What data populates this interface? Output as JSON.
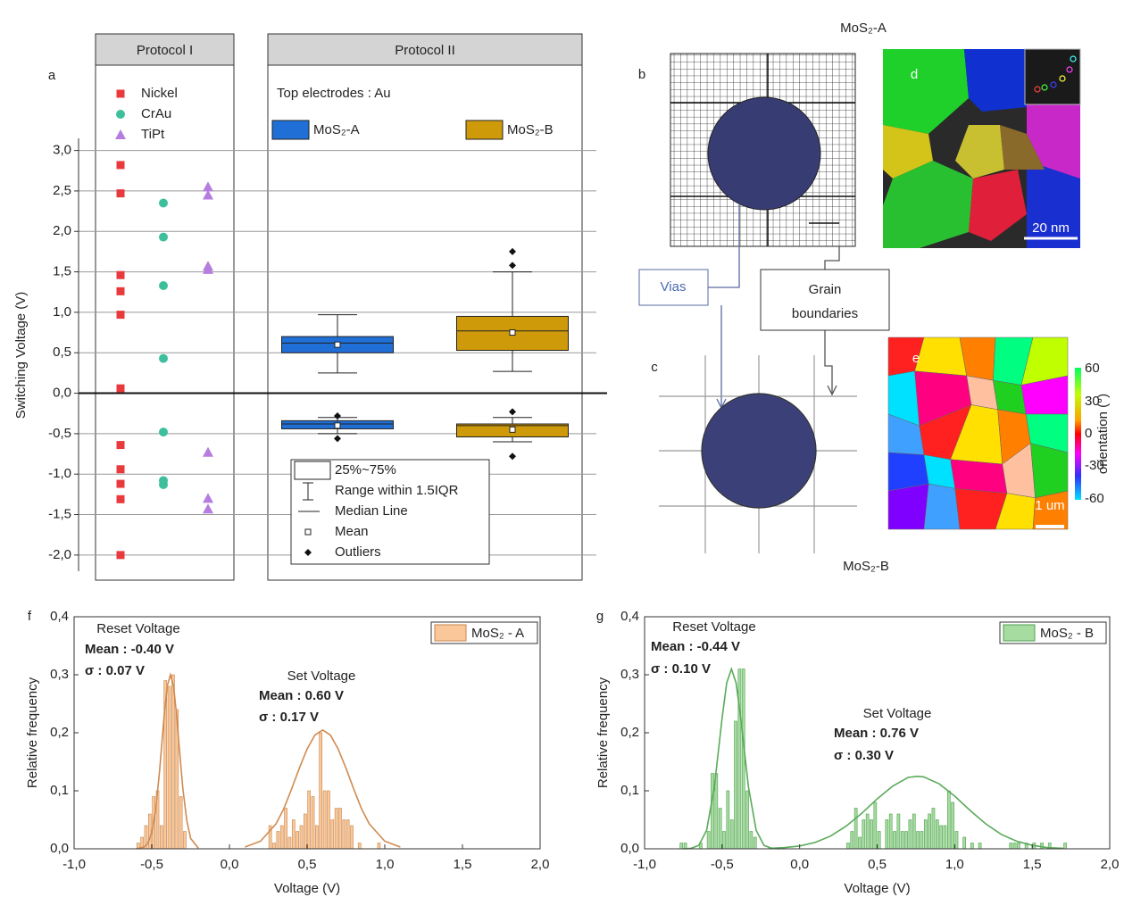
{
  "chart_data": [
    {
      "type": "box",
      "panel": "a",
      "y_label": "Switching Voltage (V)",
      "groups": [
        "Protocol I",
        "Protocol II"
      ],
      "note": "Top electrodes : Au",
      "ylim": [
        -2.2,
        3.15
      ],
      "yticks": [
        {
          "value": -2,
          "label": "-2,0"
        },
        {
          "value": -1.5,
          "label": "-1,5"
        },
        {
          "value": -1,
          "label": "-1,0"
        },
        {
          "value": -0.5,
          "label": "-0,5"
        },
        {
          "value": 0,
          "label": "0,0"
        },
        {
          "value": 0.5,
          "label": "0,5"
        },
        {
          "value": 1,
          "label": "1,0"
        },
        {
          "value": 1.5,
          "label": "1,5"
        },
        {
          "value": 2,
          "label": "2,0"
        },
        {
          "value": 2.5,
          "label": "2,5"
        },
        {
          "value": 3,
          "label": "3,0"
        }
      ],
      "grid": true,
      "points": [
        {
          "name": "Nickel",
          "color": "#e8393c",
          "marker": "square",
          "values": [
            2.82,
            2.47,
            1.46,
            1.26,
            0.97,
            0.06,
            -0.64,
            -0.94,
            -1.12,
            -1.31,
            -2.0
          ]
        },
        {
          "name": "CrAu",
          "color": "#3dbf9c",
          "marker": "circle",
          "values": [
            2.35,
            1.93,
            1.33,
            0.43,
            -0.48,
            -1.08,
            -1.13
          ]
        },
        {
          "name": "TiPt",
          "color": "#b57de0",
          "marker": "triangle",
          "values": [
            2.55,
            2.45,
            1.57,
            1.53,
            -0.73,
            -1.3,
            -1.43
          ]
        }
      ],
      "series": [
        {
          "name": "MoS₂-A",
          "color": "#1f6fd6",
          "boxes": [
            {
              "min": 0.25,
              "q1": 0.5,
              "median": 0.62,
              "q3": 0.7,
              "max": 0.97,
              "mean": 0.6,
              "outliers": []
            },
            {
              "min": -0.5,
              "q1": -0.44,
              "median": -0.38,
              "q3": -0.34,
              "max": -0.3,
              "mean": -0.4,
              "outliers": [
                -0.28,
                -0.56
              ]
            }
          ]
        },
        {
          "name": "MoS₂-B",
          "color": "#cf9a0a",
          "boxes": [
            {
              "min": 0.27,
              "q1": 0.53,
              "median": 0.77,
              "q3": 0.95,
              "max": 1.5,
              "mean": 0.75,
              "outliers": [
                1.58,
                1.75
              ]
            },
            {
              "min": -0.6,
              "q1": -0.54,
              "median": -0.4,
              "q3": -0.38,
              "max": -0.3,
              "mean": -0.45,
              "outliers": [
                -0.23,
                -0.78
              ]
            }
          ]
        }
      ],
      "box_legend": [
        "25%~75%",
        "Range within 1.5IQR",
        "Median Line",
        "Mean",
        "Outliers"
      ]
    },
    {
      "type": "histogram",
      "panel": "f",
      "x_label": "Voltage (V)",
      "y_label": "Relative frequency",
      "xlim": [
        -1,
        2
      ],
      "ylim": [
        0,
        0.4
      ],
      "xticks": [
        {
          "value": -1,
          "label": "-1,0"
        },
        {
          "value": -0.5,
          "label": "-0,5"
        },
        {
          "value": 0,
          "label": "0,0"
        },
        {
          "value": 0.5,
          "label": "0,5"
        },
        {
          "value": 1,
          "label": "1,0"
        },
        {
          "value": 1.5,
          "label": "1,5"
        },
        {
          "value": 2,
          "label": "2,0"
        }
      ],
      "yticks": [
        {
          "value": 0,
          "label": "0,0"
        },
        {
          "value": 0.1,
          "label": "0,1"
        },
        {
          "value": 0.2,
          "label": "0,2"
        },
        {
          "value": 0.3,
          "label": "0,3"
        },
        {
          "value": 0.4,
          "label": "0,4"
        }
      ],
      "series": [
        {
          "name": "MoS₂ - A",
          "color": "#f9c79a",
          "edge_color": "#c9854a",
          "bins": [
            -0.6,
            -0.575,
            -0.55,
            -0.525,
            -0.5,
            -0.475,
            -0.45,
            -0.425,
            -0.4,
            -0.375,
            -0.35,
            -0.325,
            -0.3,
            -0.275,
            -0.25,
            -0.225,
            -0.2,
            -0.175,
            -0.15,
            -0.125,
            -0.1,
            -0.075,
            -0.05,
            -0.025,
            0,
            0.025,
            0.05,
            0.075,
            0.1,
            0.125,
            0.15,
            0.175,
            0.2,
            0.225,
            0.25,
            0.275,
            0.3,
            0.325,
            0.35,
            0.375,
            0.4,
            0.425,
            0.45,
            0.475,
            0.5,
            0.525,
            0.55,
            0.575,
            0.6,
            0.625,
            0.65,
            0.675,
            0.7,
            0.725,
            0.75,
            0.775,
            0.8,
            0.825,
            0.85,
            0.875,
            0.9,
            0.925,
            0.95,
            0.975,
            1.0
          ],
          "values": [
            0.01,
            0.02,
            0.04,
            0.06,
            0.09,
            0.1,
            0.04,
            0.29,
            0.28,
            0.3,
            0.24,
            0.09,
            0.03,
            0,
            0,
            0,
            0,
            0,
            0,
            0,
            0,
            0,
            0,
            0,
            0,
            0,
            0,
            0,
            0,
            0,
            0,
            0,
            0,
            0,
            0.04,
            0.01,
            0.03,
            0.04,
            0.07,
            0.02,
            0.05,
            0.03,
            0.04,
            0.06,
            0.1,
            0.09,
            0.04,
            0.2,
            0.1,
            0.1,
            0.05,
            0.07,
            0.07,
            0.05,
            0.05,
            0.04,
            0,
            0.01,
            0,
            0,
            0,
            0,
            0.01,
            0
          ]
        }
      ],
      "curve_color": "#d08a50",
      "curves": [
        {
          "x": [
            -0.6,
            -0.55,
            -0.525,
            -0.5,
            -0.475,
            -0.45,
            -0.42,
            -0.4,
            -0.38,
            -0.36,
            -0.34,
            -0.32,
            -0.3,
            -0.275,
            -0.25,
            -0.2
          ],
          "values": [
            0,
            0.003,
            0.009,
            0.028,
            0.068,
            0.133,
            0.23,
            0.281,
            0.3,
            0.281,
            0.23,
            0.166,
            0.104,
            0.049,
            0.018,
            0.001
          ]
        },
        {
          "x": [
            0.1,
            0.2,
            0.3,
            0.35,
            0.4,
            0.45,
            0.5,
            0.55,
            0.6,
            0.65,
            0.7,
            0.75,
            0.8,
            0.85,
            0.9,
            1.0,
            1.1
          ],
          "values": [
            0.003,
            0.013,
            0.043,
            0.069,
            0.103,
            0.139,
            0.172,
            0.196,
            0.205,
            0.196,
            0.172,
            0.139,
            0.103,
            0.069,
            0.043,
            0.013,
            0.003
          ]
        }
      ],
      "annotations": [
        "Reset Voltage",
        "Mean : -0.40 V",
        "σ : 0.07 V",
        "Set Voltage",
        "Mean : 0.60 V",
        "σ : 0.17 V"
      ]
    },
    {
      "type": "histogram",
      "panel": "g",
      "x_label": "Voltage (V)",
      "y_label": "Relative frequency",
      "xlim": [
        -1,
        2
      ],
      "ylim": [
        0,
        0.4
      ],
      "xticks": [
        {
          "value": -1,
          "label": "-1,0"
        },
        {
          "value": -0.5,
          "label": "-0,5"
        },
        {
          "value": 0,
          "label": "0,0"
        },
        {
          "value": 0.5,
          "label": "0,5"
        },
        {
          "value": 1,
          "label": "1,0"
        },
        {
          "value": 1.5,
          "label": "1,5"
        },
        {
          "value": 2,
          "label": "2,0"
        }
      ],
      "yticks": [
        {
          "value": 0,
          "label": "0,0"
        },
        {
          "value": 0.1,
          "label": "0,1"
        },
        {
          "value": 0.2,
          "label": "0,2"
        },
        {
          "value": 0.3,
          "label": "0,3"
        },
        {
          "value": 0.4,
          "label": "0,4"
        }
      ],
      "series": [
        {
          "name": "MoS₂ - B",
          "color": "#a6dca0",
          "edge_color": "#4f9f4f",
          "bins": [
            -0.8,
            -0.775,
            -0.75,
            -0.725,
            -0.7,
            -0.675,
            -0.65,
            -0.625,
            -0.6,
            -0.575,
            -0.55,
            -0.525,
            -0.5,
            -0.475,
            -0.45,
            -0.425,
            -0.4,
            -0.375,
            -0.35,
            -0.325,
            -0.3,
            -0.275,
            -0.25,
            -0.225,
            -0.2,
            -0.175,
            -0.15,
            -0.125,
            -0.1,
            -0.075,
            -0.05,
            -0.025,
            0,
            0.025,
            0.05,
            0.075,
            0.1,
            0.125,
            0.15,
            0.175,
            0.2,
            0.225,
            0.25,
            0.275,
            0.3,
            0.325,
            0.35,
            0.375,
            0.4,
            0.425,
            0.45,
            0.475,
            0.5,
            0.525,
            0.55,
            0.575,
            0.6,
            0.625,
            0.65,
            0.675,
            0.7,
            0.725,
            0.75,
            0.775,
            0.8,
            0.825,
            0.85,
            0.875,
            0.9,
            0.925,
            0.95,
            0.975,
            1,
            1.025,
            1.05,
            1.075,
            1.1,
            1.125,
            1.15,
            1.175,
            1.2,
            1.225,
            1.25,
            1.275,
            1.3,
            1.325,
            1.35,
            1.375,
            1.4,
            1.425,
            1.45,
            1.475,
            1.5,
            1.525,
            1.55,
            1.575,
            1.6,
            1.625,
            1.65,
            1.675,
            1.7,
            1.725,
            1.75
          ],
          "values": [
            0,
            0.01,
            0.01,
            0,
            0,
            0,
            0.01,
            0,
            0.03,
            0.13,
            0.13,
            0.07,
            0.03,
            0.1,
            0.05,
            0.22,
            0.31,
            0.31,
            0.1,
            0.03,
            0.02,
            0,
            0,
            0,
            0,
            0,
            0,
            0,
            0,
            0,
            0,
            0,
            0,
            0,
            0,
            0,
            0,
            0,
            0,
            0,
            0,
            0,
            0,
            0,
            0.01,
            0.03,
            0.07,
            0.02,
            0.05,
            0.06,
            0.05,
            0.08,
            0.03,
            0,
            0.05,
            0.06,
            0.03,
            0.06,
            0.03,
            0.03,
            0.05,
            0.06,
            0.03,
            0.03,
            0.05,
            0.06,
            0.07,
            0.05,
            0.04,
            0.04,
            0.1,
            0.08,
            0.03,
            0,
            0.02,
            0,
            0.01,
            0,
            0.01,
            0,
            0,
            0,
            0,
            0,
            0,
            0,
            0.01,
            0.01,
            0.01,
            0,
            0.01,
            0,
            0.01,
            0,
            0.01,
            0,
            0.01,
            0,
            0,
            0,
            0.01,
            0
          ]
        }
      ],
      "curve_color": "#5aaa5a",
      "curves": [
        {
          "x": [
            -0.75,
            -0.7,
            -0.65,
            -0.6,
            -0.55,
            -0.5,
            -0.47,
            -0.44,
            -0.41,
            -0.38,
            -0.33,
            -0.28,
            -0.23,
            -0.18,
            -0.13
          ],
          "values": [
            0,
            0.001,
            0.006,
            0.032,
            0.106,
            0.225,
            0.286,
            0.31,
            0.286,
            0.225,
            0.106,
            0.032,
            0.006,
            0.001,
            0
          ]
        },
        {
          "x": [
            -0.2,
            -0.1,
            0,
            0.1,
            0.2,
            0.3,
            0.4,
            0.5,
            0.6,
            0.7,
            0.76,
            0.8,
            0.9,
            1.0,
            1.1,
            1.2,
            1.3,
            1.4,
            1.5,
            1.6,
            1.7
          ],
          "values": [
            0.001,
            0.002,
            0.005,
            0.011,
            0.022,
            0.039,
            0.061,
            0.086,
            0.108,
            0.123,
            0.125,
            0.124,
            0.112,
            0.091,
            0.066,
            0.043,
            0.025,
            0.013,
            0.006,
            0.002,
            0.001
          ]
        }
      ],
      "annotations": [
        "Reset Voltage",
        "Mean : -0.44 V",
        "σ : 0.10 V",
        "Set Voltage",
        "Mean : 0.76 V",
        "σ : 0.30 V"
      ]
    }
  ],
  "figure": {
    "title_top": "MoS₂-A",
    "title_bottom": "MoS₂-B",
    "labels": [
      "b",
      "c",
      "d",
      "e"
    ],
    "vias": "Vias",
    "grain": [
      "Grain",
      "boundaries"
    ],
    "scale_d": "20 nm",
    "scale_e": "1 um",
    "colorbar_ticks": [
      "60",
      "30",
      "0",
      "-30",
      "-60"
    ],
    "colorbar_label": "orientation (°)"
  }
}
